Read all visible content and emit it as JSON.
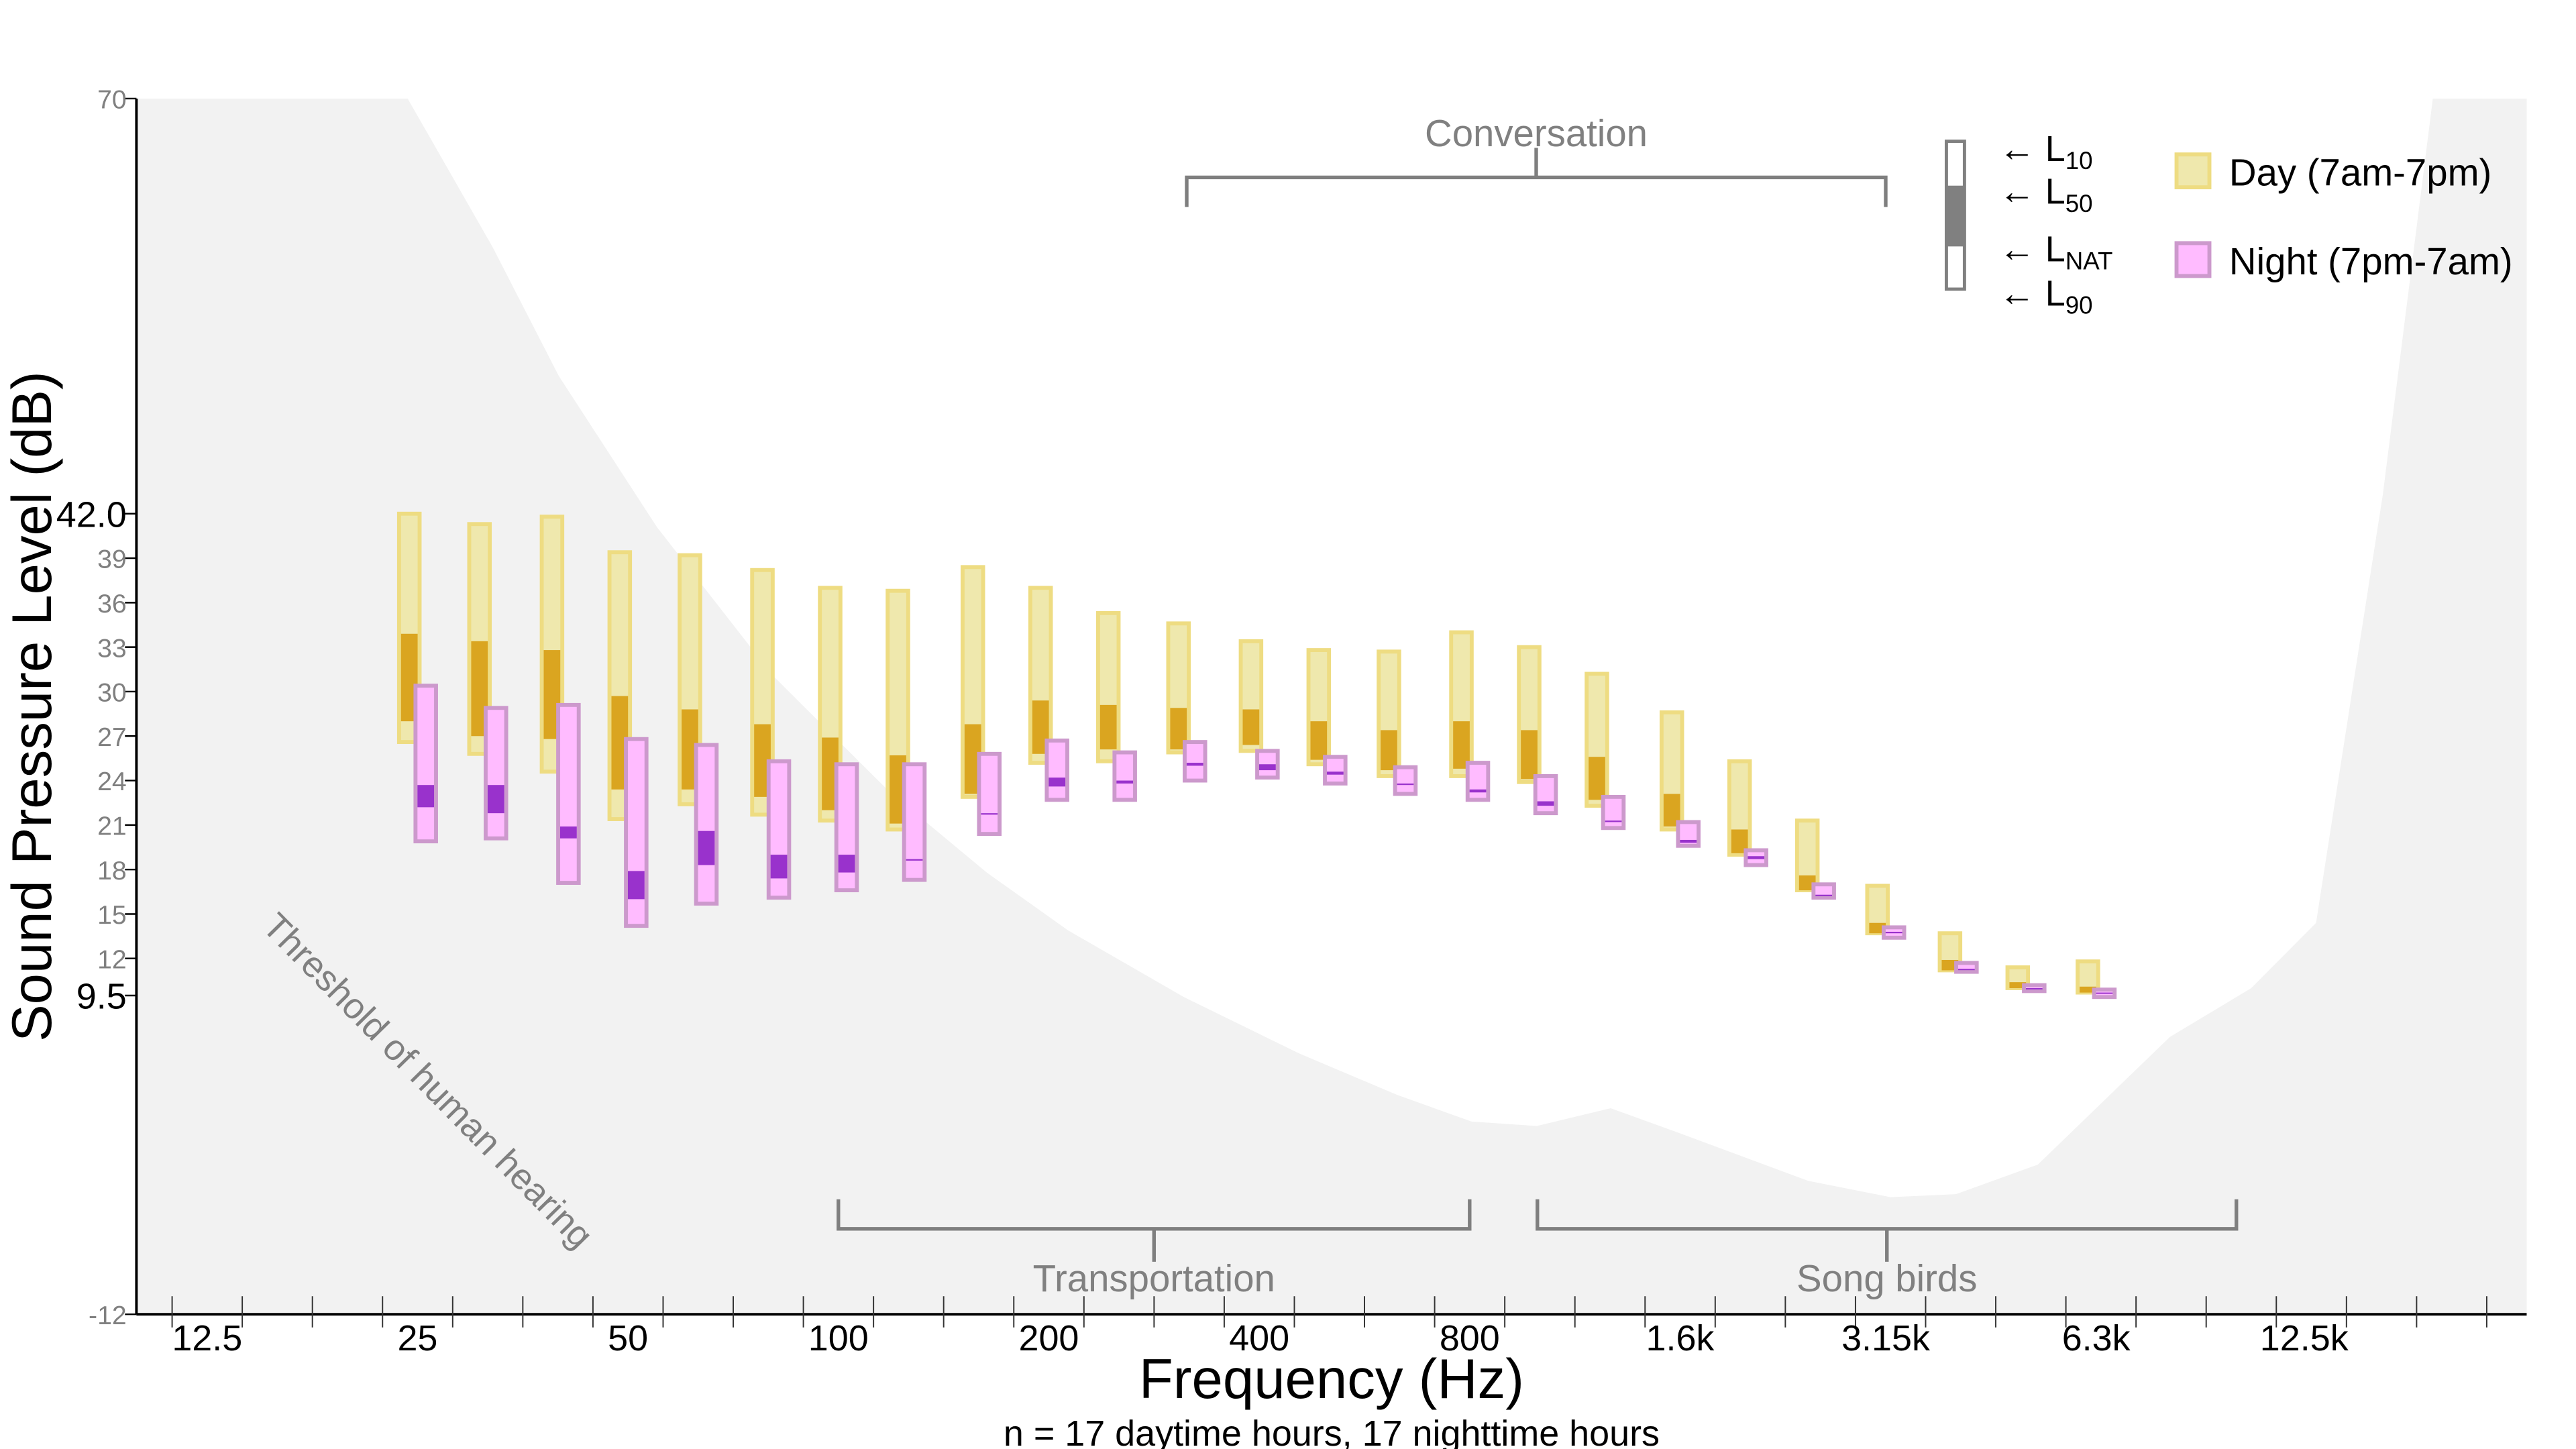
{
  "chart_data": {
    "type": "bar",
    "subtype": "floating range bars (L10, L50, LNAT, L90)",
    "title": "",
    "xlabel": "Frequency (Hz)",
    "ylabel": "Sound Pressure Level (dB)",
    "caption": "n = 17 daytime hours, 17 nighttime hours",
    "x_scale": "log",
    "xlim": [
      6.6,
      25600
    ],
    "ylim": [
      -12,
      70
    ],
    "grid": false,
    "background_color": "#F2F2F2",
    "yticks": [
      -12,
      9.5,
      12,
      15,
      18,
      21,
      24,
      27,
      30,
      33,
      36,
      39,
      42,
      70
    ],
    "ytick_labels": [
      "-12",
      "9.5",
      "12",
      "15",
      "18",
      "21",
      "24",
      "27",
      "30",
      "33",
      "36",
      "39",
      "42.0",
      "70"
    ],
    "emphasized_ytick_labels": [
      "9.5",
      "42.0"
    ],
    "xtick_values": [
      12.5,
      25,
      50,
      100,
      200,
      400,
      800,
      1600,
      3150,
      6300,
      12500
    ],
    "xtick_labels": [
      "12.5",
      "25",
      "50",
      "100",
      "200",
      "400",
      "800",
      "1.6k",
      "3.15k",
      "6.3k",
      "12.5k"
    ],
    "categories": [
      25,
      31.5,
      40,
      50,
      63,
      80,
      100,
      125,
      160,
      200,
      250,
      315,
      400,
      500,
      630,
      800,
      1000,
      1250,
      1600,
      2000,
      2500,
      3150,
      4000,
      5000,
      6300
    ],
    "series": [
      {
        "name": "Day (7am-7pm)",
        "fill": "#EFE8AD",
        "stroke": "#EEDC82",
        "dark": "#DAA520",
        "L10": [
          42.0,
          41.3,
          41.8,
          39.4,
          39.2,
          38.2,
          37.0,
          36.8,
          38.4,
          37.0,
          35.3,
          34.6,
          33.4,
          32.8,
          32.7,
          34.0,
          33.0,
          31.2,
          28.6,
          25.3,
          21.3,
          16.9,
          13.7,
          11.4,
          11.8
        ],
        "L50": [
          33.9,
          33.4,
          32.8,
          29.7,
          28.8,
          27.8,
          26.9,
          25.7,
          27.8,
          29.4,
          29.1,
          28.9,
          28.8,
          28.0,
          27.4,
          28.0,
          27.4,
          25.6,
          23.1,
          20.7,
          17.6,
          14.4,
          11.9,
          10.4,
          10.1
        ],
        "LNAT": [
          28.0,
          27.0,
          26.8,
          23.4,
          23.4,
          22.9,
          22.0,
          21.1,
          23.1,
          25.8,
          26.1,
          26.1,
          26.4,
          25.4,
          24.7,
          24.8,
          24.1,
          22.7,
          20.9,
          19.1,
          16.6,
          13.7,
          11.2,
          10.0,
          9.7
        ],
        "L90": [
          26.6,
          25.8,
          24.6,
          21.4,
          22.4,
          21.7,
          21.3,
          20.7,
          22.9,
          25.2,
          25.3,
          25.9,
          26.0,
          25.1,
          24.3,
          24.3,
          23.9,
          22.3,
          20.7,
          19.0,
          16.6,
          13.7,
          11.2,
          10.0,
          9.7
        ]
      },
      {
        "name": "Night (7pm-7am)",
        "fill": "#FFBBFF",
        "stroke": "#CC99CC",
        "dark": "#9932CC",
        "L10": [
          30.4,
          28.9,
          29.1,
          26.8,
          26.4,
          25.3,
          25.1,
          25.1,
          25.8,
          26.7,
          25.9,
          26.6,
          26.0,
          25.6,
          24.9,
          25.2,
          24.3,
          22.9,
          21.2,
          19.3,
          17.0,
          14.1,
          11.7,
          10.2,
          9.9
        ],
        "L50": [
          23.7,
          23.7,
          20.9,
          17.9,
          20.6,
          19.0,
          19.0,
          18.7,
          21.8,
          24.2,
          24.0,
          25.2,
          25.1,
          24.6,
          23.8,
          23.4,
          22.6,
          21.3,
          20.0,
          18.9,
          16.3,
          13.8,
          11.3,
          10.0,
          9.7
        ],
        "LNAT": [
          22.2,
          21.8,
          20.1,
          16.0,
          18.3,
          17.4,
          17.8,
          18.6,
          21.7,
          23.6,
          23.8,
          25.0,
          24.7,
          24.4,
          23.7,
          23.2,
          22.3,
          21.2,
          19.8,
          18.7,
          16.2,
          13.7,
          11.3,
          10.0,
          9.7
        ],
        "L90": [
          19.9,
          20.1,
          17.1,
          14.2,
          15.7,
          16.1,
          16.6,
          17.3,
          20.4,
          22.7,
          22.7,
          24.0,
          24.2,
          23.8,
          23.1,
          22.7,
          21.8,
          20.8,
          19.6,
          18.3,
          16.1,
          13.4,
          11.1,
          9.8,
          9.4
        ]
      }
    ],
    "threshold": {
      "label": "Threshold of human hearing",
      "color": "#F2F2F2",
      "points": [
        [
          24.2,
          70
        ],
        [
          32,
          60
        ],
        [
          39.8,
          51.3
        ],
        [
          55,
          41.1
        ],
        [
          80.5,
          31.1
        ],
        [
          118,
          23.3
        ],
        [
          163,
          17.8
        ],
        [
          213,
          13.9
        ],
        [
          312,
          9.4
        ],
        [
          456,
          5.6
        ],
        [
          630,
          2.8
        ],
        [
          805,
          1.0
        ],
        [
          998,
          0.7
        ],
        [
          1273,
          1.9
        ],
        [
          1580,
          0.3
        ],
        [
          2440,
          -3.0
        ],
        [
          3200,
          -4.1
        ],
        [
          3970,
          -3.9
        ],
        [
          5200,
          -1.9
        ],
        [
          8030,
          6.7
        ],
        [
          10500,
          10.0
        ],
        [
          13000,
          14.4
        ],
        [
          16200,
          43.3
        ],
        [
          19100,
          70
        ]
      ]
    },
    "annotations": [
      {
        "label": "Conversation",
        "range_hz": [
          315,
          3150
        ],
        "position": "top"
      },
      {
        "label": "Transportation",
        "range_hz": [
          100,
          800
        ],
        "position": "bottom"
      },
      {
        "label": "Song birds",
        "range_hz": [
          1000,
          10000
        ],
        "position": "bottom"
      }
    ],
    "legend": {
      "placement": "top-right",
      "metrics": [
        {
          "arrow": "←",
          "main": "L",
          "sub": "10"
        },
        {
          "arrow": "←",
          "main": "L",
          "sub": "50"
        },
        {
          "arrow": "←",
          "main": "L",
          "sub": "NAT"
        },
        {
          "arrow": "←",
          "main": "L",
          "sub": "90"
        }
      ],
      "entries": [
        "Day (7am-7pm)",
        "Night (7pm-7am)"
      ]
    }
  }
}
